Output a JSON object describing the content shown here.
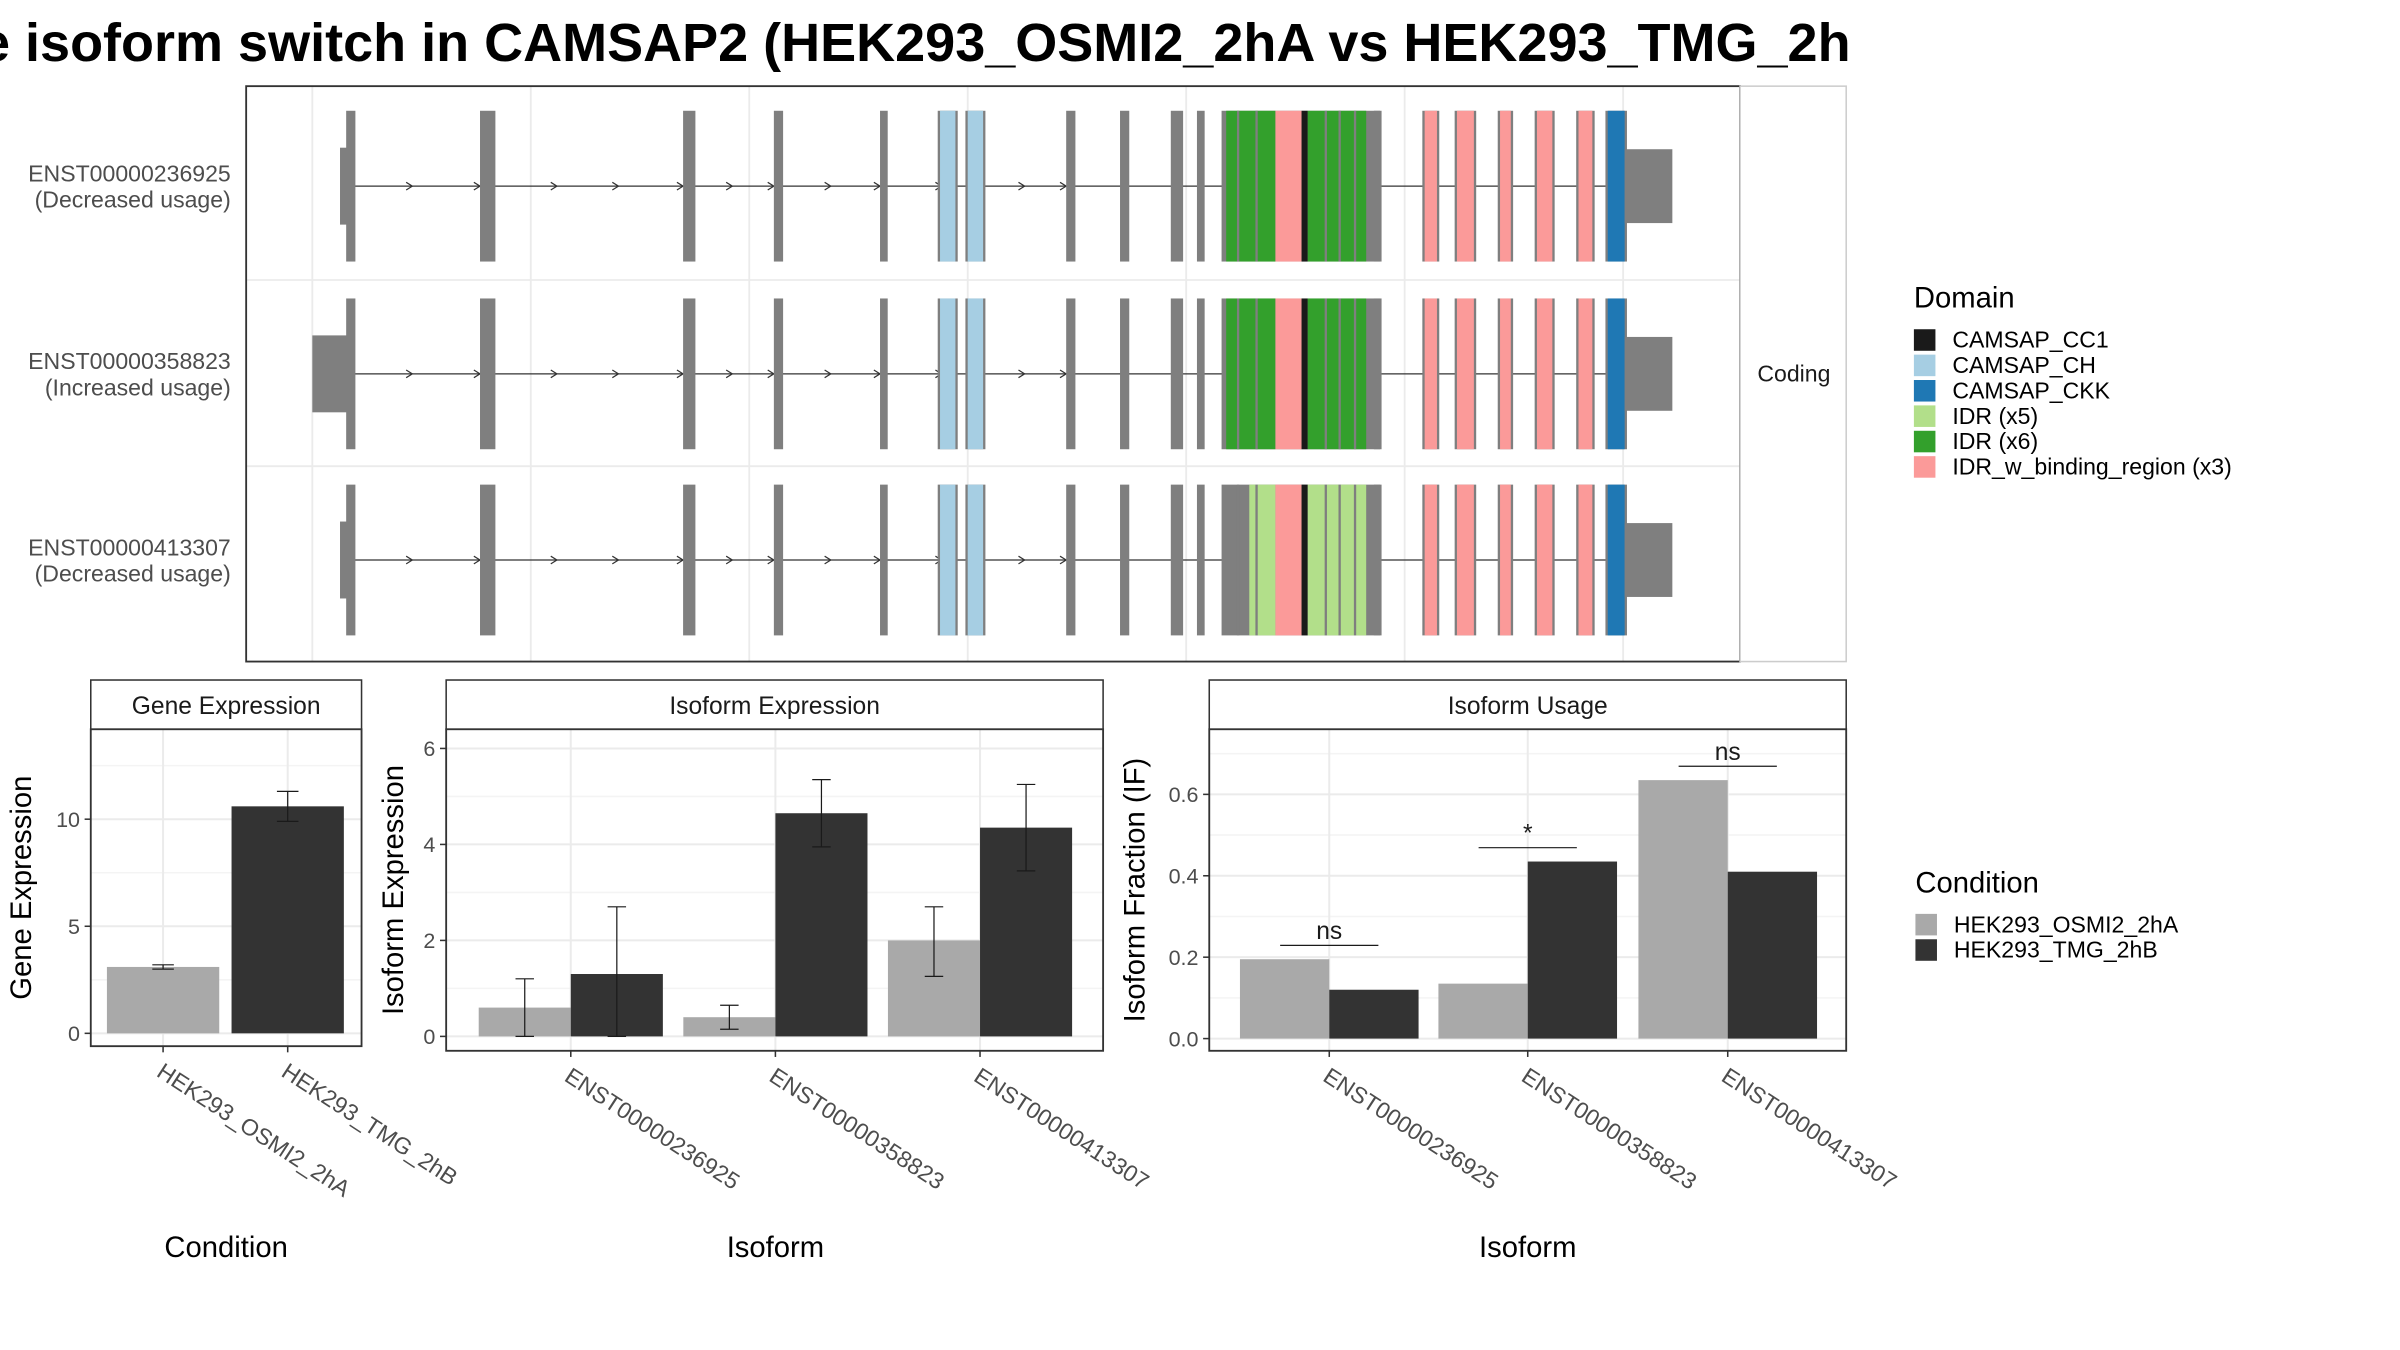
{
  "title": "e isoform switch in CAMSAP2 (HEK293_OSMI2_2hA vs HEK293_TMG_2h",
  "structure": {
    "strip_label": "Coding",
    "isoforms": [
      {
        "id": "ENST00000236925",
        "usage": "(Decreased usage)"
      },
      {
        "id": "ENST00000358823",
        "usage": "(Increased usage)"
      },
      {
        "id": "ENST00000413307",
        "usage": "(Decreased usage)"
      }
    ]
  },
  "domain_legend": {
    "title": "Domain",
    "items": [
      {
        "label": "CAMSAP_CC1",
        "color": "#1a1a1a"
      },
      {
        "label": "CAMSAP_CH",
        "color": "#a6cee3"
      },
      {
        "label": "CAMSAP_CKK",
        "color": "#1f78b4"
      },
      {
        "label": "IDR (x5)",
        "color": "#b2df8a"
      },
      {
        "label": "IDR (x6)",
        "color": "#33a02c"
      },
      {
        "label": "IDR_w_binding_region (x3)",
        "color": "#fb9a99"
      }
    ]
  },
  "condition_legend": {
    "title": "Condition",
    "items": [
      {
        "label": "HEK293_OSMI2_2hA",
        "color": "#a9a9a9"
      },
      {
        "label": "HEK293_TMG_2hB",
        "color": "#333333"
      }
    ]
  },
  "colors": {
    "exon": "#7f7f7f",
    "panel_border": "#333333",
    "grid": "#ebebeb",
    "strip_border": "#cccccc"
  },
  "chart_data": [
    {
      "type": "bar",
      "title": "Gene Expression",
      "xlabel": "Condition",
      "ylabel": "Gene Expression",
      "ylim": [
        -0.6,
        14.2
      ],
      "yticks": [
        0,
        5,
        10
      ],
      "categories": [
        "HEK293_OSMI2_2hA",
        "HEK293_TMG_2hB"
      ],
      "values": [
        3.1,
        10.6
      ],
      "error_low": [
        3.0,
        9.9
      ],
      "error_high": [
        3.2,
        11.3
      ]
    },
    {
      "type": "bar",
      "title": "Isoform Expression",
      "xlabel": "Isoform",
      "ylabel": "Isoform Expression",
      "ylim": [
        -0.3,
        6.4
      ],
      "yticks": [
        0,
        2,
        4,
        6
      ],
      "categories": [
        "ENST00000236925",
        "ENST00000358823",
        "ENST00000413307"
      ],
      "series": [
        {
          "name": "HEK293_OSMI2_2hA",
          "values": [
            0.6,
            0.4,
            2.0
          ],
          "error_low": [
            0.0,
            0.15,
            1.25
          ],
          "error_high": [
            1.2,
            0.65,
            2.7
          ]
        },
        {
          "name": "HEK293_TMG_2hB",
          "values": [
            1.3,
            4.65,
            4.35
          ],
          "error_low": [
            0.0,
            3.95,
            3.45
          ],
          "error_high": [
            2.7,
            5.35,
            5.25
          ]
        }
      ]
    },
    {
      "type": "bar",
      "title": "Isoform Usage",
      "xlabel": "Isoform",
      "ylabel": "Isoform Fraction (IF)",
      "ylim": [
        -0.03,
        0.76
      ],
      "yticks": [
        0.0,
        0.2,
        0.4,
        0.6
      ],
      "categories": [
        "ENST00000236925",
        "ENST00000358823",
        "ENST00000413307"
      ],
      "series": [
        {
          "name": "HEK293_OSMI2_2hA",
          "values": [
            0.195,
            0.135,
            0.635
          ]
        },
        {
          "name": "HEK293_TMG_2hB",
          "values": [
            0.12,
            0.435,
            0.41
          ]
        }
      ],
      "significance": [
        "ns",
        "*",
        "ns"
      ]
    }
  ]
}
